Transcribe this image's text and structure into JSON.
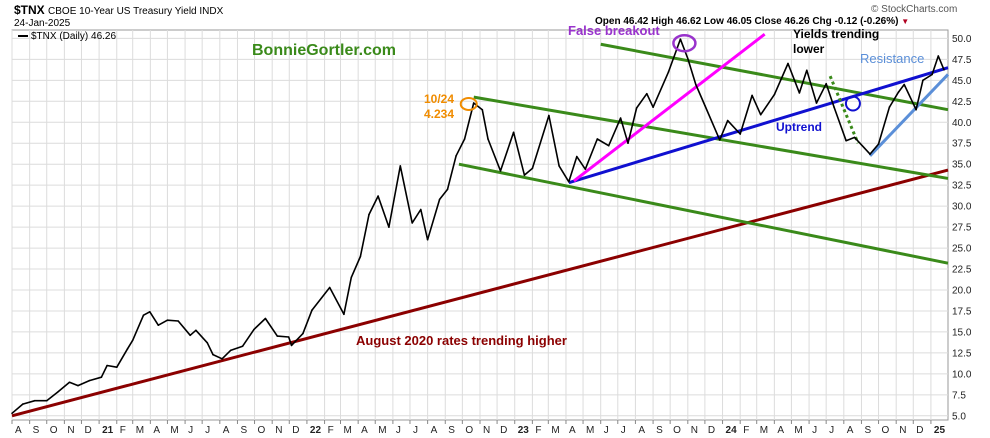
{
  "header": {
    "symbol": "$TNX",
    "description": "CBOE 10-Year US Treasury Yield INDX",
    "date": "24-Jan-2025",
    "legend": "$TNX (Daily) 46.26",
    "ohlc": "Open 46.42  High 46.62  Low 46.05  Close 46.26  Chg -0.12 (-0.26%)",
    "copyright": "© StockCharts.com"
  },
  "colors": {
    "price": "#000000",
    "long_trend": "#8b0000",
    "channel": "#3a8a1a",
    "uptrend": "#1010d0",
    "false_breakout": "#ff00ff",
    "resistance": "#5b8fd8",
    "peak_label": "#f08c00",
    "annotation_purple": "#9933cc"
  },
  "chart_data": {
    "type": "line",
    "title": "$TNX CBOE 10-Year US Treasury Yield INDX",
    "ylabel": "",
    "ylim": [
      4.5,
      51
    ],
    "y_ticks": [
      5.0,
      7.5,
      10.0,
      12.5,
      15.0,
      17.5,
      20.0,
      22.5,
      25.0,
      27.5,
      30.0,
      32.5,
      35.0,
      37.5,
      40.0,
      42.5,
      45.0,
      47.5,
      50.0
    ],
    "y_tick_labels": [
      "5.0",
      "7.5",
      "10.0",
      "12.5",
      "15.0",
      "17.5",
      "20.0",
      "22.5",
      "25.0",
      "27.5",
      "30.0",
      "32.5",
      "35.0",
      "37.5",
      "40.0",
      "42.5",
      "45.0",
      "47.5",
      "50.0"
    ],
    "x_range": [
      "2020-08-01",
      "2025-01-31"
    ],
    "x_ticks": [
      {
        "label": "A",
        "date": "2020-08-01"
      },
      {
        "label": "S",
        "date": "2020-09-01"
      },
      {
        "label": "O",
        "date": "2020-10-01"
      },
      {
        "label": "N",
        "date": "2020-11-01"
      },
      {
        "label": "D",
        "date": "2020-12-01"
      },
      {
        "label": "21",
        "date": "2021-01-01",
        "bold": true
      },
      {
        "label": "F",
        "date": "2021-02-01"
      },
      {
        "label": "M",
        "date": "2021-03-01"
      },
      {
        "label": "A",
        "date": "2021-04-01"
      },
      {
        "label": "M",
        "date": "2021-05-01"
      },
      {
        "label": "J",
        "date": "2021-06-01"
      },
      {
        "label": "J",
        "date": "2021-07-01"
      },
      {
        "label": "A",
        "date": "2021-08-01"
      },
      {
        "label": "S",
        "date": "2021-09-01"
      },
      {
        "label": "O",
        "date": "2021-10-01"
      },
      {
        "label": "N",
        "date": "2021-11-01"
      },
      {
        "label": "D",
        "date": "2021-12-01"
      },
      {
        "label": "22",
        "date": "2022-01-01",
        "bold": true
      },
      {
        "label": "F",
        "date": "2022-02-01"
      },
      {
        "label": "M",
        "date": "2022-03-01"
      },
      {
        "label": "A",
        "date": "2022-04-01"
      },
      {
        "label": "M",
        "date": "2022-05-01"
      },
      {
        "label": "J",
        "date": "2022-06-01"
      },
      {
        "label": "J",
        "date": "2022-07-01"
      },
      {
        "label": "A",
        "date": "2022-08-01"
      },
      {
        "label": "S",
        "date": "2022-09-01"
      },
      {
        "label": "O",
        "date": "2022-10-01"
      },
      {
        "label": "N",
        "date": "2022-11-01"
      },
      {
        "label": "D",
        "date": "2022-12-01"
      },
      {
        "label": "23",
        "date": "2023-01-01",
        "bold": true
      },
      {
        "label": "F",
        "date": "2023-02-01"
      },
      {
        "label": "M",
        "date": "2023-03-01"
      },
      {
        "label": "A",
        "date": "2023-04-01"
      },
      {
        "label": "M",
        "date": "2023-05-01"
      },
      {
        "label": "J",
        "date": "2023-06-01"
      },
      {
        "label": "J",
        "date": "2023-07-01"
      },
      {
        "label": "A",
        "date": "2023-08-01"
      },
      {
        "label": "S",
        "date": "2023-09-01"
      },
      {
        "label": "O",
        "date": "2023-10-01"
      },
      {
        "label": "N",
        "date": "2023-11-01"
      },
      {
        "label": "D",
        "date": "2023-12-01"
      },
      {
        "label": "24",
        "date": "2024-01-01",
        "bold": true
      },
      {
        "label": "F",
        "date": "2024-02-01"
      },
      {
        "label": "M",
        "date": "2024-03-01"
      },
      {
        "label": "A",
        "date": "2024-04-01"
      },
      {
        "label": "M",
        "date": "2024-05-01"
      },
      {
        "label": "J",
        "date": "2024-06-01"
      },
      {
        "label": "J",
        "date": "2024-07-01"
      },
      {
        "label": "A",
        "date": "2024-08-01"
      },
      {
        "label": "S",
        "date": "2024-09-01"
      },
      {
        "label": "O",
        "date": "2024-10-01"
      },
      {
        "label": "N",
        "date": "2024-11-01"
      },
      {
        "label": "D",
        "date": "2024-12-01"
      },
      {
        "label": "25",
        "date": "2025-01-01",
        "bold": true
      }
    ],
    "series": [
      {
        "name": "$TNX (Daily)",
        "points": [
          [
            "2020-08-01",
            5.3
          ],
          [
            "2020-08-20",
            6.4
          ],
          [
            "2020-09-10",
            6.8
          ],
          [
            "2020-10-01",
            6.8
          ],
          [
            "2020-10-20",
            7.8
          ],
          [
            "2020-11-10",
            9.0
          ],
          [
            "2020-11-25",
            8.6
          ],
          [
            "2020-12-15",
            9.2
          ],
          [
            "2021-01-05",
            9.6
          ],
          [
            "2021-01-15",
            11.0
          ],
          [
            "2021-02-01",
            10.8
          ],
          [
            "2021-02-20",
            13.0
          ],
          [
            "2021-03-01",
            14.0
          ],
          [
            "2021-03-20",
            17.0
          ],
          [
            "2021-03-31",
            17.4
          ],
          [
            "2021-04-15",
            15.8
          ],
          [
            "2021-05-01",
            16.4
          ],
          [
            "2021-05-20",
            16.3
          ],
          [
            "2021-06-10",
            14.6
          ],
          [
            "2021-06-20",
            15.2
          ],
          [
            "2021-07-10",
            13.7
          ],
          [
            "2021-07-20",
            12.3
          ],
          [
            "2021-08-05",
            11.8
          ],
          [
            "2021-08-20",
            12.8
          ],
          [
            "2021-09-10",
            13.3
          ],
          [
            "2021-09-30",
            15.3
          ],
          [
            "2021-10-20",
            16.6
          ],
          [
            "2021-11-10",
            14.5
          ],
          [
            "2021-11-30",
            14.4
          ],
          [
            "2021-12-05",
            13.4
          ],
          [
            "2021-12-25",
            14.8
          ],
          [
            "2022-01-10",
            17.6
          ],
          [
            "2022-02-10",
            20.3
          ],
          [
            "2022-03-07",
            17.1
          ],
          [
            "2022-03-20",
            21.5
          ],
          [
            "2022-04-05",
            24.0
          ],
          [
            "2022-04-20",
            29.0
          ],
          [
            "2022-05-06",
            31.2
          ],
          [
            "2022-05-25",
            27.5
          ],
          [
            "2022-06-14",
            34.8
          ],
          [
            "2022-07-05",
            28.0
          ],
          [
            "2022-07-20",
            29.6
          ],
          [
            "2022-08-01",
            26.0
          ],
          [
            "2022-08-22",
            30.8
          ],
          [
            "2022-09-05",
            32.0
          ],
          [
            "2022-09-20",
            36.0
          ],
          [
            "2022-10-05",
            38.0
          ],
          [
            "2022-10-21",
            42.3
          ],
          [
            "2022-11-05",
            41.5
          ],
          [
            "2022-11-15",
            38.0
          ],
          [
            "2022-12-07",
            34.2
          ],
          [
            "2022-12-30",
            38.8
          ],
          [
            "2023-01-18",
            33.7
          ],
          [
            "2023-02-01",
            34.5
          ],
          [
            "2023-03-02",
            40.8
          ],
          [
            "2023-03-20",
            34.8
          ],
          [
            "2023-04-06",
            32.9
          ],
          [
            "2023-04-20",
            35.9
          ],
          [
            "2023-05-05",
            34.4
          ],
          [
            "2023-05-26",
            38.0
          ],
          [
            "2023-06-15",
            37.2
          ],
          [
            "2023-07-06",
            40.5
          ],
          [
            "2023-07-19",
            37.5
          ],
          [
            "2023-08-03",
            41.7
          ],
          [
            "2023-08-21",
            43.4
          ],
          [
            "2023-09-01",
            41.8
          ],
          [
            "2023-09-28",
            46.0
          ],
          [
            "2023-10-19",
            49.9
          ],
          [
            "2023-11-01",
            47.6
          ],
          [
            "2023-11-15",
            44.5
          ],
          [
            "2023-12-01",
            42.0
          ],
          [
            "2023-12-27",
            37.9
          ],
          [
            "2024-01-10",
            40.2
          ],
          [
            "2024-02-01",
            38.6
          ],
          [
            "2024-02-22",
            43.2
          ],
          [
            "2024-03-08",
            40.9
          ],
          [
            "2024-04-01",
            43.3
          ],
          [
            "2024-04-25",
            47.0
          ],
          [
            "2024-05-15",
            43.5
          ],
          [
            "2024-05-28",
            46.2
          ],
          [
            "2024-06-14",
            42.3
          ],
          [
            "2024-07-01",
            44.6
          ],
          [
            "2024-07-15",
            41.8
          ],
          [
            "2024-08-05",
            37.8
          ],
          [
            "2024-08-20",
            38.2
          ],
          [
            "2024-09-16",
            36.2
          ],
          [
            "2024-10-01",
            37.4
          ],
          [
            "2024-10-20",
            41.8
          ],
          [
            "2024-11-05",
            43.6
          ],
          [
            "2024-11-15",
            44.5
          ],
          [
            "2024-12-06",
            41.5
          ],
          [
            "2024-12-18",
            45.0
          ],
          [
            "2025-01-03",
            45.7
          ],
          [
            "2025-01-14",
            47.9
          ],
          [
            "2025-01-24",
            46.26
          ]
        ]
      }
    ],
    "trendlines": [
      {
        "label": "August 2020 rates trending higher",
        "color": "long_trend",
        "from": [
          "2020-08-01",
          5.0
        ],
        "to": [
          "2025-01-31",
          34.3
        ]
      },
      {
        "label": "",
        "color": "channel",
        "from": [
          "2023-06-01",
          49.3
        ],
        "to": [
          "2025-01-31",
          41.5
        ]
      },
      {
        "label": "",
        "color": "channel",
        "from": [
          "2022-10-21",
          43.0
        ],
        "to": [
          "2025-01-31",
          33.3
        ]
      },
      {
        "label": "",
        "color": "channel",
        "from": [
          "2022-09-25",
          35.0
        ],
        "to": [
          "2025-01-31",
          23.2
        ]
      },
      {
        "label": "Uptrend",
        "color": "uptrend",
        "from": [
          "2023-04-06",
          32.8
        ],
        "to": [
          "2025-01-31",
          46.5
        ]
      },
      {
        "label": "False breakout",
        "color": "false_breakout",
        "from": [
          "2023-04-15",
          33.0
        ],
        "to": [
          "2024-03-15",
          50.5
        ]
      },
      {
        "label": "Resistance",
        "color": "resistance",
        "from": [
          "2024-09-16",
          36.0
        ],
        "to": [
          "2025-01-31",
          45.7
        ]
      },
      {
        "label": "",
        "color": "channel",
        "dashed": true,
        "from": [
          "2024-07-08",
          45.5
        ],
        "to": [
          "2024-08-26",
          37.5
        ]
      }
    ],
    "annotations": [
      {
        "text": "BonnieGortler.com",
        "color": "channel"
      },
      {
        "text": "10/24",
        "color": "peak_label"
      },
      {
        "text": "4.234",
        "color": "peak_label"
      },
      {
        "text": "False breakout",
        "color": "annotation_purple"
      },
      {
        "text": "Yields trending",
        "color": "price"
      },
      {
        "text": "lower",
        "color": "price"
      },
      {
        "text": "Uptrend",
        "color": "uptrend"
      },
      {
        "text": "Resistance",
        "color": "resistance"
      },
      {
        "text": "August 2020 rates trending higher",
        "color": "long_trend"
      }
    ],
    "grid": true,
    "legend_position": "top-left"
  }
}
